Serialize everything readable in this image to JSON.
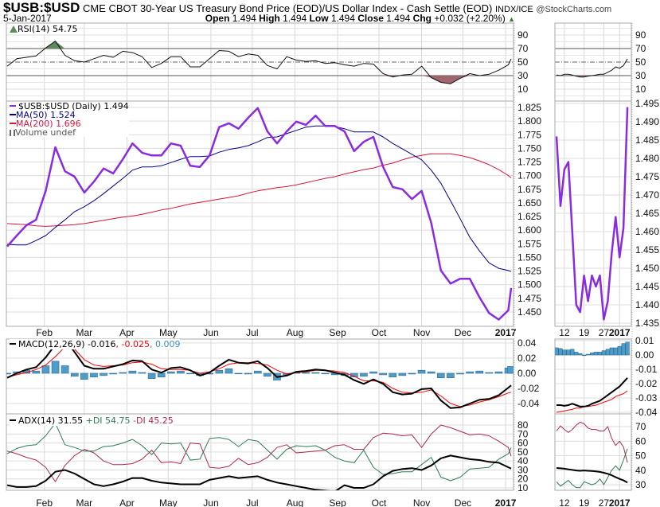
{
  "header": {
    "symbol": "$USB:$USD",
    "description": "CME CBOT 30-Year US Treasury Bond Price (EOD)/US Dollar Index - Cash Settle (EOD)",
    "exchange": "INDX/ICE",
    "watermark": "@StockCharts.com",
    "date": "5-Jan-2017",
    "open_label": "Open",
    "open": "1.494",
    "high_label": "High",
    "high": "1.494",
    "low_label": "Low",
    "low": "1.494",
    "close_label": "Close",
    "close": "1.494",
    "chg_label": "Chg",
    "chg": "+0.032 (+2.20%)",
    "chg_arrow": "▲"
  },
  "legends": {
    "rsi": "RSI(14) 54.75",
    "price": "$USB:$USD (Daily) 1.494",
    "ma50": "MA(50) 1.524",
    "ma200": "MA(200) 1.696",
    "volume": "Volume undef",
    "macd_name": "MACD(12,26,9) -0.016",
    "macd_signal": ", -0.025",
    "macd_hist": ", 0.009",
    "adx_name": "ADX(14) 31.55",
    "adx_pdi": "+DI 54.75",
    "adx_mdi": "-DI 45.25"
  },
  "colors": {
    "price": "#8a2be2",
    "ma50": "#00008b",
    "ma200": "#dc143c",
    "rsi_over": "#5f8a5f",
    "rsi_under": "#a0666e",
    "macd": "#000000",
    "signal": "#ff0000",
    "hist": "#4f9cc9",
    "adx": "#000000",
    "pdi": "#2e7d4f",
    "mdi": "#b0284a"
  },
  "chart_data": {
    "type": "line",
    "main": {
      "x_axis_labels": [
        "Feb",
        "Mar",
        "Apr",
        "May",
        "Jun",
        "Jul",
        "Aug",
        "Sep",
        "Oct",
        "Nov",
        "Dec",
        "2017"
      ],
      "dates": [
        "2016-01-05",
        "2016-01-12",
        "2016-01-19",
        "2016-01-26",
        "2016-02-02",
        "2016-02-09",
        "2016-02-16",
        "2016-02-23",
        "2016-03-01",
        "2016-03-08",
        "2016-03-15",
        "2016-03-22",
        "2016-03-29",
        "2016-04-05",
        "2016-04-12",
        "2016-04-19",
        "2016-04-26",
        "2016-05-03",
        "2016-05-10",
        "2016-05-17",
        "2016-05-24",
        "2016-05-31",
        "2016-06-07",
        "2016-06-14",
        "2016-06-21",
        "2016-06-28",
        "2016-07-05",
        "2016-07-12",
        "2016-07-19",
        "2016-07-26",
        "2016-08-02",
        "2016-08-09",
        "2016-08-16",
        "2016-08-23",
        "2016-08-30",
        "2016-09-06",
        "2016-09-13",
        "2016-09-20",
        "2016-09-27",
        "2016-10-04",
        "2016-10-11",
        "2016-10-18",
        "2016-10-25",
        "2016-11-01",
        "2016-11-08",
        "2016-11-15",
        "2016-11-22",
        "2016-11-29",
        "2016-12-06",
        "2016-12-13",
        "2016-12-20",
        "2016-12-27",
        "2017-01-03",
        "2017-01-05"
      ],
      "rsi": {
        "ticks": [
          90,
          70,
          50,
          30,
          10
        ],
        "overbought": 70,
        "oversold": 30,
        "values": [
          44,
          55,
          57,
          59,
          71,
          81,
          60,
          52,
          50,
          55,
          60,
          57,
          66,
          64,
          58,
          42,
          48,
          58,
          58,
          43,
          43,
          55,
          67,
          66,
          58,
          62,
          60,
          45,
          40,
          58,
          53,
          51,
          52,
          48,
          49,
          46,
          44,
          48,
          47,
          33,
          28,
          31,
          32,
          44,
          27,
          20,
          18,
          26,
          33,
          30,
          32,
          38,
          46,
          54.75
        ]
      },
      "price": {
        "ticks": [
          1.825,
          1.8,
          1.775,
          1.75,
          1.725,
          1.7,
          1.675,
          1.65,
          1.625,
          1.6,
          1.575,
          1.55,
          1.525,
          1.5,
          1.475,
          1.45
        ],
        "tick_labels": [
          "1.825",
          "1.800",
          "1.775",
          "1.750",
          "1.725",
          "1.700",
          "1.675",
          "1.650",
          "1.625",
          "1.600",
          "1.575",
          "1.550",
          "1.525",
          "1.500",
          "1.475",
          "1.450"
        ],
        "series": [
          {
            "name": "$USB:$USD",
            "values": [
              1.57,
              1.59,
              1.609,
              1.619,
              1.672,
              1.752,
              1.708,
              1.698,
              1.669,
              1.689,
              1.713,
              1.704,
              1.73,
              1.759,
              1.742,
              1.737,
              1.737,
              1.759,
              1.755,
              1.718,
              1.716,
              1.737,
              1.789,
              1.796,
              1.786,
              1.806,
              1.824,
              1.781,
              1.759,
              1.781,
              1.799,
              1.793,
              1.81,
              1.791,
              1.791,
              1.781,
              1.745,
              1.762,
              1.771,
              1.716,
              1.679,
              1.675,
              1.657,
              1.672,
              1.613,
              1.526,
              1.502,
              1.511,
              1.511,
              1.477,
              1.448,
              1.436,
              1.453,
              1.494
            ]
          },
          {
            "name": "MA(50)",
            "values": [
              1.574,
              1.573,
              1.573,
              1.581,
              1.59,
              1.605,
              1.619,
              1.634,
              1.643,
              1.654,
              1.667,
              1.681,
              1.695,
              1.71,
              1.716,
              1.716,
              1.718,
              1.724,
              1.73,
              1.735,
              1.735,
              1.736,
              1.743,
              1.748,
              1.751,
              1.755,
              1.762,
              1.77,
              1.771,
              1.777,
              1.783,
              1.789,
              1.791,
              1.791,
              1.79,
              1.786,
              1.78,
              1.78,
              1.78,
              1.771,
              1.759,
              1.749,
              1.739,
              1.729,
              1.71,
              1.686,
              1.654,
              1.621,
              1.587,
              1.562,
              1.54,
              1.53,
              1.526,
              1.524
            ]
          },
          {
            "name": "MA(200)",
            "values": [
              1.612,
              1.611,
              1.61,
              1.608,
              1.607,
              1.608,
              1.609,
              1.61,
              1.612,
              1.615,
              1.618,
              1.621,
              1.624,
              1.626,
              1.629,
              1.633,
              1.637,
              1.64,
              1.644,
              1.648,
              1.651,
              1.654,
              1.657,
              1.66,
              1.663,
              1.668,
              1.672,
              1.675,
              1.678,
              1.68,
              1.683,
              1.687,
              1.691,
              1.695,
              1.698,
              1.703,
              1.707,
              1.711,
              1.714,
              1.719,
              1.723,
              1.729,
              1.734,
              1.737,
              1.74,
              1.74,
              1.74,
              1.737,
              1.733,
              1.727,
              1.72,
              1.711,
              1.7,
              1.696
            ]
          }
        ]
      },
      "macd": {
        "ticks": [
          0.04,
          0.02,
          0.0,
          -0.02,
          -0.04
        ],
        "tick_labels": [
          "0.04",
          "0.02",
          "0.00",
          "-0.02",
          "-0.04"
        ],
        "macd": [
          -0.006,
          0.0,
          0.005,
          0.008,
          0.021,
          0.038,
          0.045,
          0.028,
          0.01,
          0.006,
          0.006,
          0.009,
          0.012,
          0.017,
          0.016,
          0.005,
          0.001,
          0.007,
          0.008,
          0.004,
          -0.003,
          0.001,
          0.01,
          0.018,
          0.014,
          0.013,
          0.016,
          0.007,
          -0.005,
          -0.003,
          0.002,
          0.003,
          0.005,
          0.004,
          0.001,
          -0.002,
          -0.009,
          -0.014,
          -0.008,
          -0.014,
          -0.025,
          -0.028,
          -0.027,
          -0.021,
          -0.02,
          -0.036,
          -0.046,
          -0.045,
          -0.04,
          -0.035,
          -0.034,
          -0.029,
          -0.019,
          -0.016
        ],
        "signal": [
          -0.005,
          -0.002,
          0.001,
          0.005,
          0.011,
          0.022,
          0.035,
          0.032,
          0.018,
          0.011,
          0.009,
          0.01,
          0.011,
          0.014,
          0.015,
          0.012,
          0.006,
          0.005,
          0.005,
          0.004,
          0.0,
          0.002,
          0.006,
          0.012,
          0.014,
          0.014,
          0.013,
          0.011,
          0.004,
          -0.001,
          0.001,
          0.002,
          0.004,
          0.004,
          0.003,
          0.001,
          -0.004,
          -0.01,
          -0.01,
          -0.012,
          -0.02,
          -0.025,
          -0.026,
          -0.025,
          -0.022,
          -0.03,
          -0.04,
          -0.044,
          -0.042,
          -0.038,
          -0.035,
          -0.031,
          -0.026,
          -0.025
        ]
      },
      "adx": {
        "ticks": [
          80,
          70,
          60,
          50,
          40,
          30,
          20,
          10
        ],
        "adx": [
          13,
          11,
          11,
          12,
          18,
          28,
          30,
          26,
          20,
          14,
          12,
          14,
          17,
          21,
          21,
          18,
          16,
          15,
          14,
          14,
          14,
          19,
          21,
          23,
          21,
          22,
          23,
          19,
          16,
          14,
          12,
          10,
          8,
          7,
          6,
          13,
          10,
          10,
          14,
          23,
          29,
          31,
          32,
          30,
          35,
          43,
          46,
          44,
          42,
          41,
          39,
          38,
          33,
          31.55
        ],
        "pdi": [
          48,
          54,
          57,
          58,
          68,
          82,
          58,
          55,
          51,
          51,
          56,
          57,
          60,
          64,
          57,
          47,
          60,
          59,
          60,
          41,
          42,
          65,
          66,
          64,
          56,
          64,
          62,
          52,
          42,
          53,
          57,
          56,
          57,
          52,
          44,
          40,
          38,
          52,
          33,
          25,
          26,
          28,
          28,
          36,
          44,
          22,
          18,
          22,
          31,
          32,
          33,
          42,
          48,
          54.75
        ],
        "mdi": [
          51,
          48,
          44,
          41,
          33,
          17,
          35,
          46,
          53,
          49,
          40,
          36,
          36,
          37,
          42,
          52,
          38,
          39,
          37,
          60,
          59,
          33,
          32,
          34,
          43,
          36,
          38,
          44,
          55,
          58,
          49,
          50,
          51,
          52,
          57,
          58,
          53,
          53,
          66,
          71,
          70,
          68,
          69,
          55,
          70,
          80,
          77,
          73,
          69,
          70,
          68,
          62,
          55,
          45.25
        ]
      }
    },
    "zoom": {
      "x_axis_labels": [
        {
          "date": "2016-12-12",
          "label": "12"
        },
        {
          "date": "2016-12-19",
          "label": "19"
        },
        {
          "date": "2016-12-27",
          "label": "27"
        },
        {
          "date": "2017-01-03",
          "label": "2017"
        }
      ],
      "dates": [
        "2016-12-08",
        "2016-12-09",
        "2016-12-12",
        "2016-12-13",
        "2016-12-14",
        "2016-12-15",
        "2016-12-16",
        "2016-12-19",
        "2016-12-20",
        "2016-12-21",
        "2016-12-22",
        "2016-12-23",
        "2016-12-27",
        "2016-12-28",
        "2016-12-29",
        "2016-12-30",
        "2017-01-03",
        "2017-01-04",
        "2017-01-05"
      ],
      "rsi": {
        "ticks": [
          90,
          70,
          50,
          30,
          10
        ],
        "values": [
          31,
          30,
          32,
          32,
          31,
          29,
          28,
          28,
          29,
          30,
          31,
          32,
          32,
          35,
          38,
          43,
          41,
          45,
          54.75
        ]
      },
      "price": {
        "ticks": [
          1.495,
          1.49,
          1.485,
          1.48,
          1.475,
          1.47,
          1.465,
          1.46,
          1.455,
          1.45,
          1.445,
          1.44,
          1.435
        ],
        "tick_labels": [
          "1.495",
          "1.490",
          "1.485",
          "1.480",
          "1.475",
          "1.470",
          "1.465",
          "1.460",
          "1.455",
          "1.450",
          "1.445",
          "1.440",
          "1.435"
        ],
        "values": [
          1.486,
          1.467,
          1.477,
          1.479,
          1.46,
          1.44,
          1.438,
          1.448,
          1.441,
          1.448,
          1.445,
          1.448,
          1.436,
          1.441,
          1.454,
          1.464,
          1.453,
          1.461,
          1.494
        ]
      },
      "macd": {
        "ticks": [
          0.01,
          0.0,
          -0.01,
          -0.02,
          -0.03,
          -0.04
        ],
        "tick_labels": [
          "0.01",
          "0.00",
          "-0.01",
          "-0.02",
          "-0.03",
          "-0.04"
        ],
        "macd": [
          -0.035,
          -0.035,
          -0.0355,
          -0.035,
          -0.034,
          -0.035,
          -0.036,
          -0.036,
          -0.0355,
          -0.034,
          -0.033,
          -0.032,
          -0.03,
          -0.028,
          -0.026,
          -0.024,
          -0.022,
          -0.019,
          -0.016
        ],
        "signal": [
          -0.04,
          -0.0395,
          -0.039,
          -0.0385,
          -0.038,
          -0.037,
          -0.037,
          -0.036,
          -0.036,
          -0.0355,
          -0.035,
          -0.034,
          -0.033,
          -0.032,
          -0.031,
          -0.029,
          -0.028,
          -0.027,
          -0.025
        ]
      },
      "adx": {
        "ticks": [
          70,
          60,
          50,
          40,
          30
        ],
        "adx": [
          41.5,
          41.3,
          41.0,
          40.6,
          40.2,
          39.8,
          39.6,
          39.8,
          39.6,
          39.4,
          39.2,
          38.8,
          38.2,
          37.5,
          36.5,
          35.2,
          34.0,
          33.0,
          31.55
        ],
        "pdi": [
          32,
          29,
          31,
          33,
          30,
          28,
          28,
          32,
          31,
          30,
          31,
          34,
          30,
          35,
          40,
          43,
          40,
          47,
          54.75
        ],
        "mdi": [
          67,
          70.5,
          68,
          66,
          68,
          71,
          73,
          72,
          69,
          68,
          68,
          67,
          67,
          70,
          62,
          57,
          60,
          56,
          45.25
        ]
      }
    }
  }
}
